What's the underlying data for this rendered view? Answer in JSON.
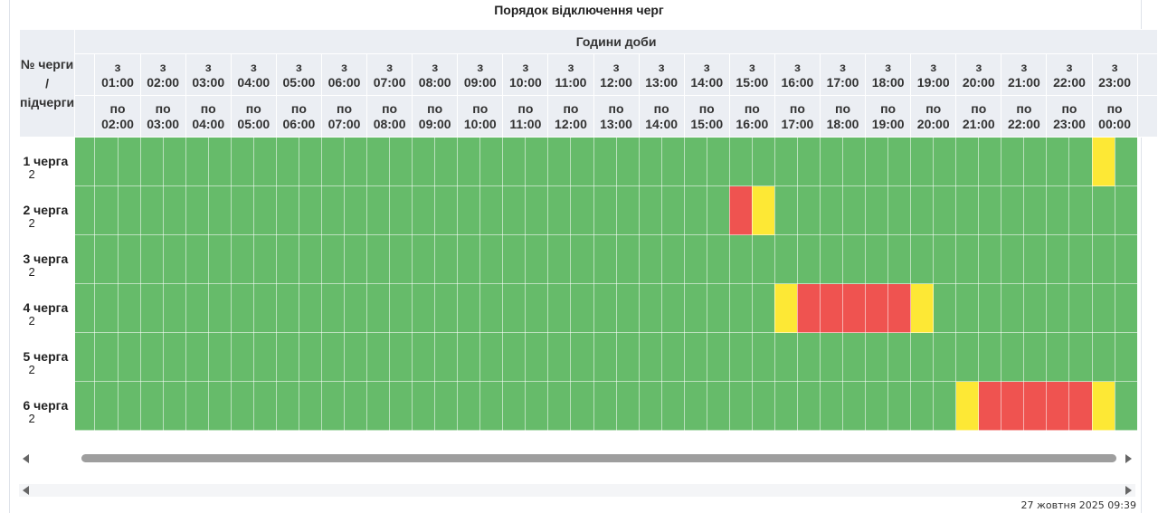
{
  "title": "Порядок відключення черг",
  "header": {
    "corner_label": "№ черги\n/\nпідчерги",
    "hours_label": "Години доби",
    "from": [
      "з\n01:00",
      "з\n02:00",
      "з\n03:00",
      "з\n04:00",
      "з\n05:00",
      "з\n06:00",
      "з\n07:00",
      "з\n08:00",
      "з\n09:00",
      "з\n10:00",
      "з\n11:00",
      "з\n12:00",
      "з\n13:00",
      "з\n14:00",
      "з\n15:00",
      "з\n16:00",
      "з\n17:00",
      "з\n18:00",
      "з\n19:00",
      "з\n20:00",
      "з\n21:00",
      "з\n22:00",
      "з\n23:00"
    ],
    "to": [
      "по\n02:00",
      "по\n03:00",
      "по\n04:00",
      "по\n05:00",
      "по\n06:00",
      "по\n07:00",
      "по\n08:00",
      "по\n09:00",
      "по\n10:00",
      "по\n11:00",
      "по\n12:00",
      "по\n13:00",
      "по\n14:00",
      "по\n15:00",
      "по\n16:00",
      "по\n17:00",
      "по\n18:00",
      "по\n19:00",
      "по\n20:00",
      "по\n21:00",
      "по\n22:00",
      "по\n23:00",
      "по\n00:00"
    ]
  },
  "status_colors": {
    "on": "#66bb6a",
    "off": "#ef5350",
    "maybe": "#fde835"
  },
  "rows": [
    {
      "label": "1 черга",
      "sub": "2",
      "cells": [
        "on",
        "on",
        "on",
        "on",
        "on",
        "on",
        "on",
        "on",
        "on",
        "on",
        "on",
        "on",
        "on",
        "on",
        "on",
        "on",
        "on",
        "on",
        "on",
        "on",
        "on",
        "on",
        "on",
        "on",
        "on",
        "on",
        "on",
        "on",
        "on",
        "on",
        "on",
        "on",
        "on",
        "on",
        "on",
        "on",
        "on",
        "on",
        "on",
        "on",
        "on",
        "on",
        "on",
        "on",
        "on",
        "maybe",
        "on"
      ]
    },
    {
      "label": "2 черга",
      "sub": "2",
      "cells": [
        "on",
        "on",
        "on",
        "on",
        "on",
        "on",
        "on",
        "on",
        "on",
        "on",
        "on",
        "on",
        "on",
        "on",
        "on",
        "on",
        "on",
        "on",
        "on",
        "on",
        "on",
        "on",
        "on",
        "on",
        "on",
        "on",
        "on",
        "on",
        "on",
        "off",
        "maybe",
        "on",
        "on",
        "on",
        "on",
        "on",
        "on",
        "on",
        "on",
        "on",
        "on",
        "on",
        "on",
        "on",
        "on",
        "on",
        "on"
      ]
    },
    {
      "label": "3 черга",
      "sub": "2",
      "cells": [
        "on",
        "on",
        "on",
        "on",
        "on",
        "on",
        "on",
        "on",
        "on",
        "on",
        "on",
        "on",
        "on",
        "on",
        "on",
        "on",
        "on",
        "on",
        "on",
        "on",
        "on",
        "on",
        "on",
        "on",
        "on",
        "on",
        "on",
        "on",
        "on",
        "on",
        "on",
        "on",
        "on",
        "on",
        "on",
        "on",
        "on",
        "on",
        "on",
        "on",
        "on",
        "on",
        "on",
        "on",
        "on",
        "on",
        "on"
      ]
    },
    {
      "label": "4 черга",
      "sub": "2",
      "cells": [
        "on",
        "on",
        "on",
        "on",
        "on",
        "on",
        "on",
        "on",
        "on",
        "on",
        "on",
        "on",
        "on",
        "on",
        "on",
        "on",
        "on",
        "on",
        "on",
        "on",
        "on",
        "on",
        "on",
        "on",
        "on",
        "on",
        "on",
        "on",
        "on",
        "on",
        "on",
        "maybe",
        "off",
        "off",
        "off",
        "off",
        "off",
        "maybe",
        "on",
        "on",
        "on",
        "on",
        "on",
        "on",
        "on",
        "on",
        "on"
      ]
    },
    {
      "label": "5 черга",
      "sub": "2",
      "cells": [
        "on",
        "on",
        "on",
        "on",
        "on",
        "on",
        "on",
        "on",
        "on",
        "on",
        "on",
        "on",
        "on",
        "on",
        "on",
        "on",
        "on",
        "on",
        "on",
        "on",
        "on",
        "on",
        "on",
        "on",
        "on",
        "on",
        "on",
        "on",
        "on",
        "on",
        "on",
        "on",
        "on",
        "on",
        "on",
        "on",
        "on",
        "on",
        "on",
        "on",
        "on",
        "on",
        "on",
        "on",
        "on",
        "on",
        "on"
      ]
    },
    {
      "label": "6 черга",
      "sub": "2",
      "cells": [
        "on",
        "on",
        "on",
        "on",
        "on",
        "on",
        "on",
        "on",
        "on",
        "on",
        "on",
        "on",
        "on",
        "on",
        "on",
        "on",
        "on",
        "on",
        "on",
        "on",
        "on",
        "on",
        "on",
        "on",
        "on",
        "on",
        "on",
        "on",
        "on",
        "on",
        "on",
        "on",
        "on",
        "on",
        "on",
        "on",
        "on",
        "on",
        "on",
        "maybe",
        "off",
        "off",
        "off",
        "off",
        "off",
        "maybe",
        "on"
      ]
    }
  ],
  "updated": "27 жовтня 2025 09:39"
}
